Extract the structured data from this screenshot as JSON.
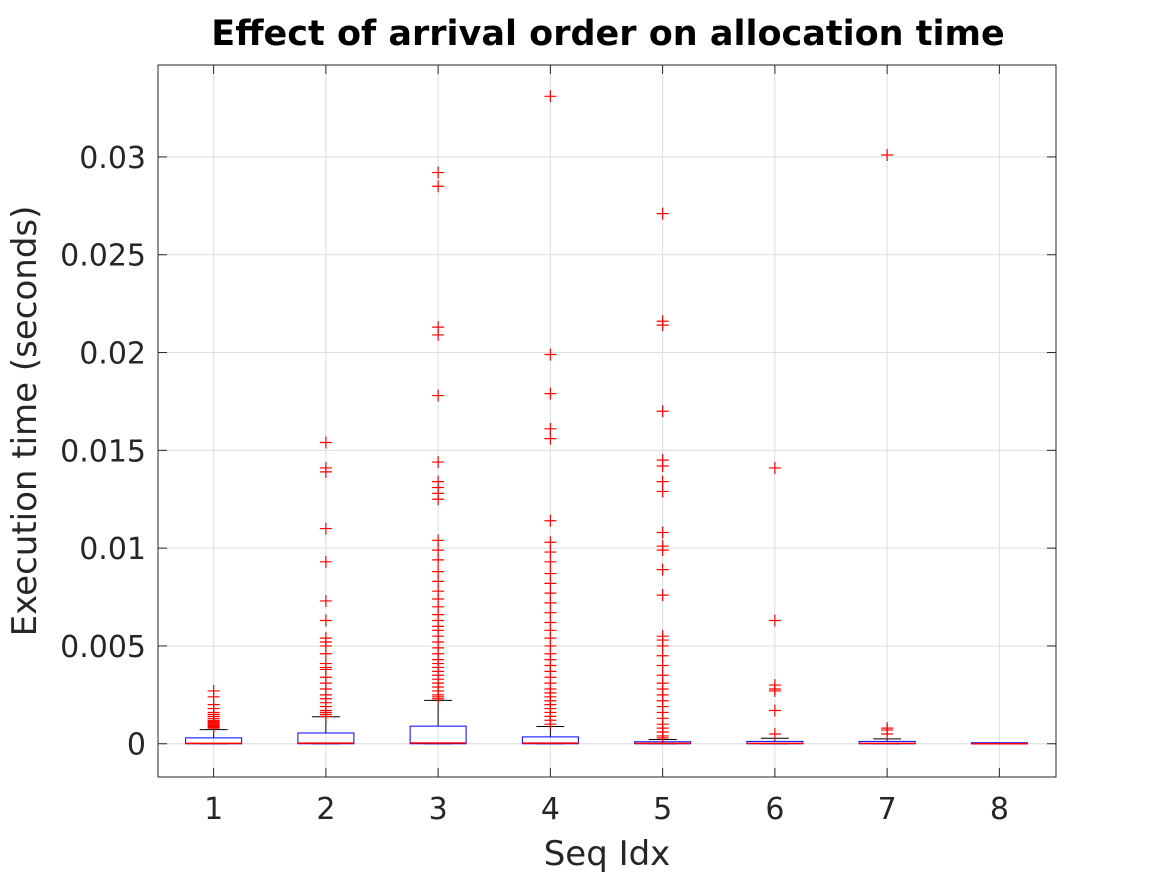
{
  "chart_data": {
    "type": "boxplot",
    "title": "Effect of arrival order on allocation time",
    "xlabel": "Seq Idx",
    "ylabel": "Execution time (seconds)",
    "categories": [
      "1",
      "2",
      "3",
      "4",
      "5",
      "6",
      "7",
      "8"
    ],
    "ylim": [
      -0.0017,
      0.0347
    ],
    "yticks": [
      0,
      0.005,
      0.01,
      0.015,
      0.02,
      0.025,
      0.03
    ],
    "ytick_labels": [
      "0",
      "0.005",
      "0.01",
      "0.015",
      "0.02",
      "0.025",
      "0.03"
    ],
    "grid": true,
    "colors": {
      "box": "#0000ff",
      "median": "#ff0000",
      "whisker": "#000000",
      "outlier": "#ff0000"
    },
    "boxes": [
      {
        "label": "1",
        "q1": 0.0,
        "median": 2e-05,
        "q3": 0.0003,
        "whisker_low": 0.0,
        "whisker_high": 0.00072,
        "outliers": [
          0.0008,
          0.00085,
          0.0009,
          0.00095,
          0.001,
          0.00105,
          0.0011,
          0.00115,
          0.0012,
          0.0013,
          0.0014,
          0.0015,
          0.0016,
          0.0018,
          0.002,
          0.0024,
          0.0027
        ]
      },
      {
        "label": "2",
        "q1": 0.0,
        "median": 3e-05,
        "q3": 0.00055,
        "whisker_low": 0.0,
        "whisker_high": 0.00138,
        "outliers": [
          0.0014,
          0.0015,
          0.0016,
          0.0017,
          0.0019,
          0.0021,
          0.0023,
          0.0025,
          0.0028,
          0.0031,
          0.0034,
          0.0038,
          0.0039,
          0.0041,
          0.0046,
          0.005,
          0.0052,
          0.0054,
          0.0063,
          0.0073,
          0.0093,
          0.011,
          0.0139,
          0.0141,
          0.0154
        ]
      },
      {
        "label": "3",
        "q1": 0.0,
        "median": 4e-05,
        "q3": 0.0009,
        "whisker_low": 0.0,
        "whisker_high": 0.00222,
        "outliers": [
          0.0023,
          0.0024,
          0.0025,
          0.0027,
          0.0029,
          0.0031,
          0.0033,
          0.0035,
          0.0037,
          0.0039,
          0.0041,
          0.0043,
          0.0046,
          0.0049,
          0.0052,
          0.0055,
          0.0058,
          0.006,
          0.0063,
          0.0066,
          0.007,
          0.0074,
          0.0078,
          0.0083,
          0.0088,
          0.0094,
          0.0099,
          0.0104,
          0.0125,
          0.0128,
          0.0131,
          0.0134,
          0.0144,
          0.0178,
          0.0209,
          0.0213,
          0.0285,
          0.0292
        ]
      },
      {
        "label": "4",
        "q1": 0.0,
        "median": 3e-05,
        "q3": 0.00035,
        "whisker_low": 0.0,
        "whisker_high": 0.00088,
        "outliers": [
          0.001,
          0.0012,
          0.0014,
          0.0016,
          0.0018,
          0.002,
          0.0022,
          0.0024,
          0.0026,
          0.0028,
          0.0031,
          0.0034,
          0.0037,
          0.004,
          0.0043,
          0.0046,
          0.005,
          0.0054,
          0.0058,
          0.0062,
          0.0067,
          0.0072,
          0.0077,
          0.0082,
          0.0087,
          0.0093,
          0.0098,
          0.0103,
          0.0114,
          0.0156,
          0.0161,
          0.0179,
          0.0199,
          0.0331
        ]
      },
      {
        "label": "5",
        "q1": 0.0,
        "median": 2e-05,
        "q3": 0.0001,
        "whisker_low": 0.0,
        "whisker_high": 0.00022,
        "outliers": [
          0.0003,
          0.0004,
          0.0006,
          0.0008,
          0.001,
          0.0013,
          0.0016,
          0.0019,
          0.0022,
          0.0025,
          0.0028,
          0.0031,
          0.0035,
          0.004,
          0.0045,
          0.005,
          0.0053,
          0.0055,
          0.0076,
          0.0089,
          0.0099,
          0.0101,
          0.0108,
          0.0129,
          0.0134,
          0.0142,
          0.0145,
          0.017,
          0.0214,
          0.0216,
          0.0271
        ]
      },
      {
        "label": "6",
        "q1": 0.0,
        "median": 2e-05,
        "q3": 0.00012,
        "whisker_low": 0.0,
        "whisker_high": 0.00028,
        "outliers": [
          0.0005,
          0.0017,
          0.0027,
          0.0028,
          0.003,
          0.0063,
          0.0141
        ]
      },
      {
        "label": "7",
        "q1": 0.0,
        "median": 2e-05,
        "q3": 0.00012,
        "whisker_low": 0.0,
        "whisker_high": 0.00025,
        "outliers": [
          0.0005,
          0.0007,
          0.0008,
          0.0301
        ]
      },
      {
        "label": "8",
        "q1": 0.0,
        "median": 0.0,
        "q3": 1e-05,
        "whisker_low": 0.0,
        "whisker_high": 2e-05,
        "outliers": []
      }
    ]
  }
}
